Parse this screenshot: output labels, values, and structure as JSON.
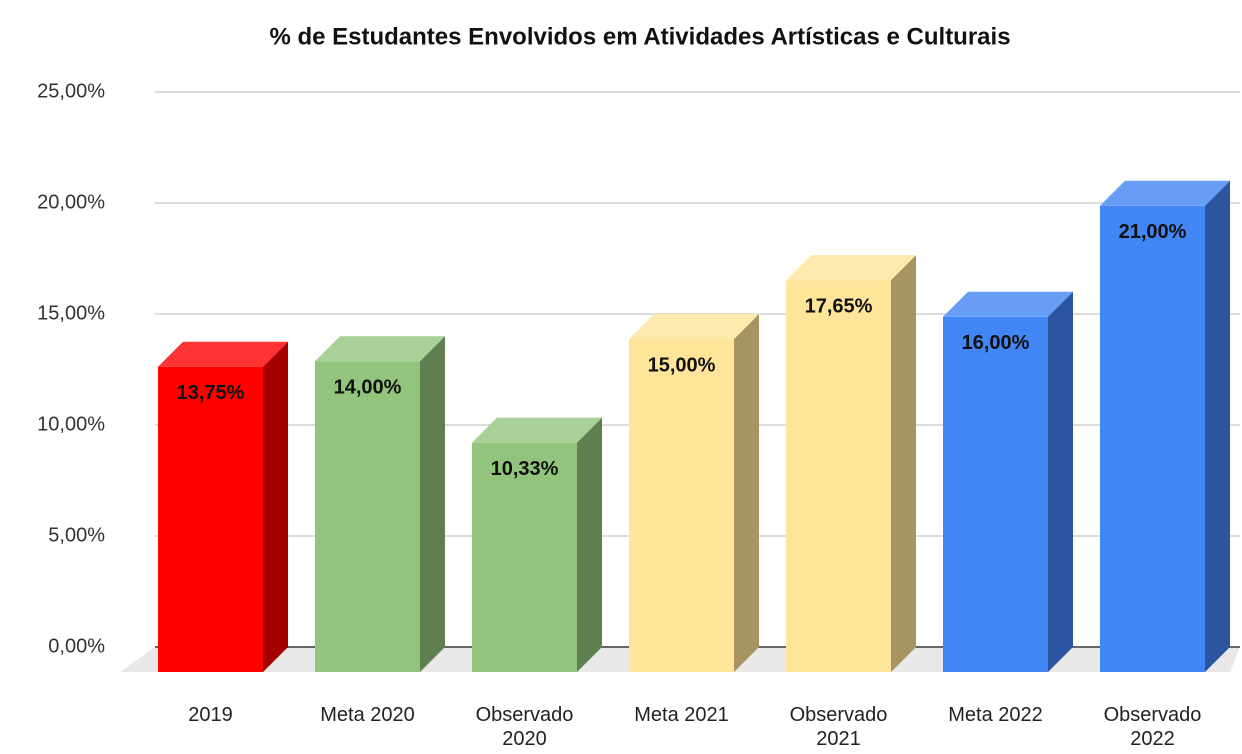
{
  "chart_data": {
    "type": "bar3d",
    "title": "% de Estudantes Envolvidos em Atividades Artísticas e  Culturais",
    "categories": [
      "2019",
      "Meta 2020",
      "Observado 2020",
      "Meta 2021",
      "Observado 2021",
      "Meta 2022",
      "Observado 2022"
    ],
    "values": [
      13.75,
      14,
      10.33,
      15,
      17.65,
      16,
      21
    ],
    "value_labels": [
      "13,75%",
      "14,00%",
      "10,33%",
      "15,00%",
      "17,65%",
      "16,00%",
      "21,00%"
    ],
    "colors": [
      "#ff0000",
      "#93c47d",
      "#93c47d",
      "#ffe599",
      "#ffe599",
      "#4285f4",
      "#4285f4"
    ],
    "ylim": [
      0,
      25
    ],
    "yticks": [
      {
        "value": 0,
        "label": "0,00%"
      },
      {
        "value": 5,
        "label": "5,00%"
      },
      {
        "value": 10,
        "label": "10,00%"
      },
      {
        "value": 15,
        "label": "15,00%"
      },
      {
        "value": 20,
        "label": "20,00%"
      },
      {
        "value": 25,
        "label": "25,00%"
      }
    ],
    "grid": true
  }
}
